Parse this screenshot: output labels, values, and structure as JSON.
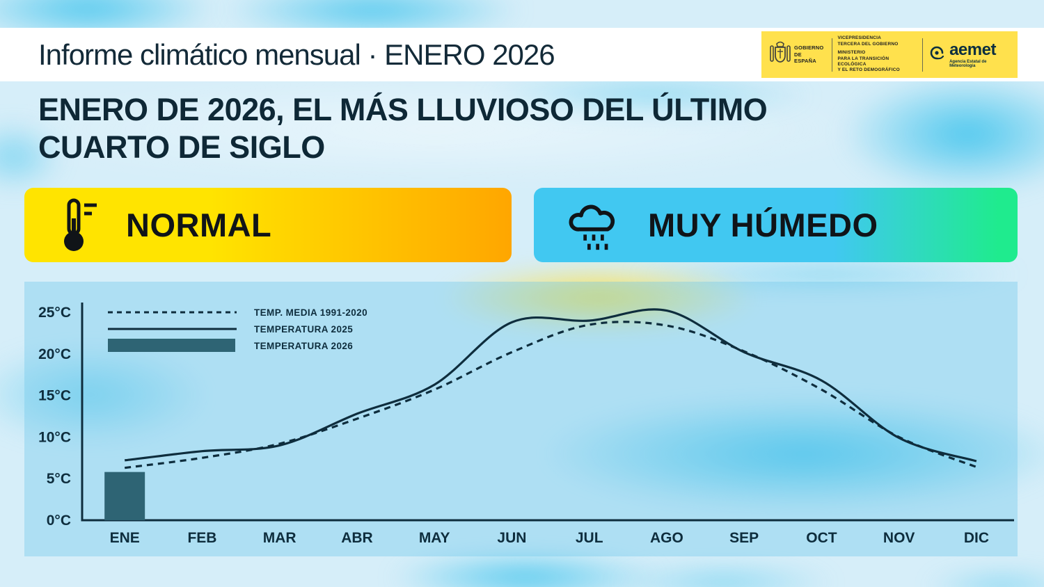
{
  "header": {
    "title": "Informe climático mensual · ENERO 2026"
  },
  "logos": {
    "gobierno": {
      "line1": "GOBIERNO",
      "line2": "DE ESPAÑA"
    },
    "ministerio": {
      "dept1": "VICEPRESIDENCIA\nTERCERA DEL GOBIERNO",
      "dept2": "MINISTERIO\nPARA LA TRANSICIÓN ECOLÓGICA\nY EL RETO DEMOGRÁFICO"
    },
    "aemet": {
      "name": "aemet",
      "subtitle": "Agencia Estatal de Meteorología"
    }
  },
  "headline": {
    "pre": "ENERO DE 2026, EL ",
    "highlight": "MÁS LLUVIOSO",
    "post": " DEL ÚLTIMO CUARTO DE SIGLO"
  },
  "badges": {
    "temperature": {
      "label": "NORMAL",
      "icon": "thermometer-icon"
    },
    "precipitation": {
      "label": "MUY HÚMEDO",
      "icon": "rain-cloud-icon"
    }
  },
  "chart_data": {
    "type": "line",
    "title": "",
    "categories": [
      "ENE",
      "FEB",
      "MAR",
      "ABR",
      "MAY",
      "JUN",
      "JUL",
      "AGO",
      "SEP",
      "OCT",
      "NOV",
      "DIC"
    ],
    "y_ticks": [
      "0°C",
      "5°C",
      "10°C",
      "15°C",
      "20°C",
      "25°C"
    ],
    "ylim": [
      0,
      25
    ],
    "grid": false,
    "legend_position": "top-left",
    "series": [
      {
        "name": "TEMP. MEDIA 1991-2020",
        "style": "dashed",
        "values": [
          6.3,
          7.5,
          9.2,
          12.2,
          15.7,
          20.2,
          23.5,
          23.4,
          20.3,
          15.7,
          10.0,
          6.4
        ]
      },
      {
        "name": "TEMPERATURA 2025",
        "style": "solid",
        "values": [
          7.2,
          8.3,
          9.0,
          12.8,
          16.3,
          23.8,
          24.0,
          25.2,
          20.2,
          16.8,
          9.9,
          7.1
        ]
      },
      {
        "name": "TEMPERATURA 2026",
        "style": "bar",
        "values": [
          5.8,
          null,
          null,
          null,
          null,
          null,
          null,
          null,
          null,
          null,
          null,
          null
        ]
      }
    ],
    "line_color": "#0e2d3d",
    "bar_color": "#2e6474"
  },
  "colors": {
    "badge_temp_start": "#ffe400",
    "badge_temp_end": "#ffa600",
    "badge_precip_start": "#41c8f1",
    "badge_precip_end": "#1feb8e",
    "background_blue": "#d6eef9",
    "blob_cyan": "#3ec3ec",
    "blob_yellow": "#ffdf3f",
    "logo_band_yellow": "#ffe14d"
  }
}
